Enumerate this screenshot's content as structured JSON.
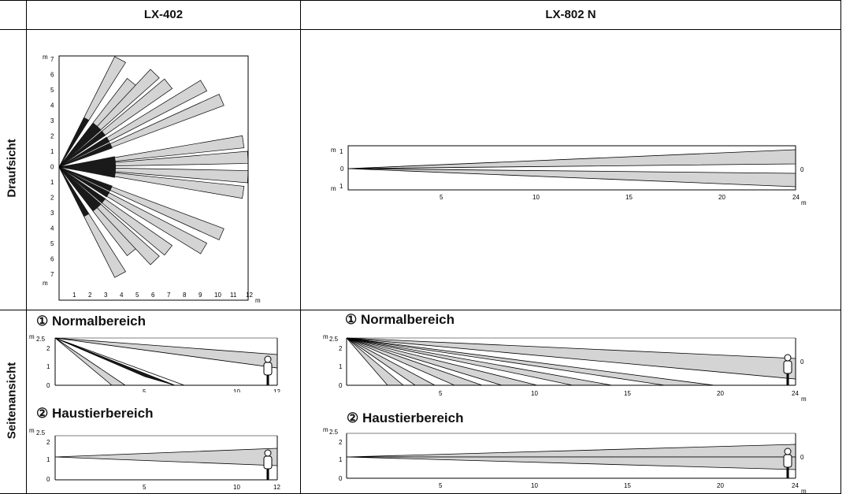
{
  "columns": {
    "left": "LX-402",
    "right": "LX-802 N"
  },
  "rows": {
    "top": "Draufsicht",
    "bottom": "Seitenansicht"
  },
  "sections": {
    "normal": "① Normalbereich",
    "pet": "② Haustierbereich"
  },
  "units": {
    "m": "m"
  },
  "lx402_top": {
    "x_ticks": [
      "1",
      "2",
      "3",
      "4",
      "5",
      "6",
      "7",
      "8",
      "9",
      "10",
      "11",
      "12"
    ],
    "y_ticks": [
      "7",
      "6",
      "5",
      "4",
      "3",
      "2",
      "1",
      "0",
      "1",
      "2",
      "3",
      "4",
      "5",
      "6",
      "7"
    ],
    "beam_lengths_m": [
      8,
      10,
      11.5,
      12
    ],
    "beam_count": 16
  },
  "lx802_top": {
    "x_ticks": [
      "5",
      "10",
      "15",
      "20",
      "24"
    ],
    "y_ticks": [
      "1",
      "0",
      "1"
    ],
    "right_tick": "0",
    "range_m": 24
  },
  "lx402_side": {
    "x_ticks": [
      "5",
      "10",
      "12"
    ],
    "y_ticks": [
      "2.5",
      "2",
      "1",
      "0"
    ]
  },
  "lx802_side": {
    "x_ticks": [
      "5",
      "10",
      "15",
      "20",
      "24"
    ],
    "y_ticks": [
      "2.5",
      "2",
      "1",
      "0"
    ],
    "right_tick": "0"
  },
  "colors": {
    "beam_fill": "#d4d4d4",
    "dark_beam": "#1a1a1a",
    "line": "#000000"
  }
}
